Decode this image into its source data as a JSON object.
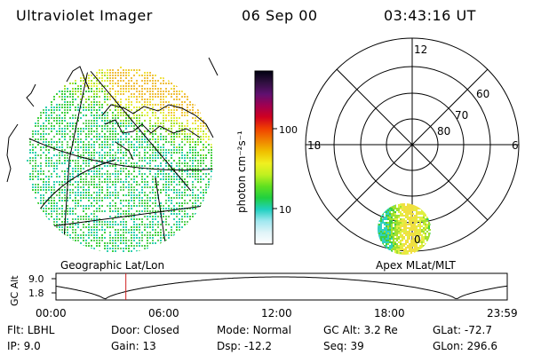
{
  "header": {
    "instrument": "Ultraviolet Imager",
    "date": "06 Sep 00",
    "time": "03:43:16 UT"
  },
  "panels": {
    "left_caption": "Geographic Lat/Lon",
    "right_caption": "Apex MLat/MLT"
  },
  "colorbar": {
    "unit_label": "photon cm⁻²s⁻¹",
    "ticks": [
      "100",
      "10"
    ],
    "colors": [
      "#000010",
      "#301040",
      "#601070",
      "#a00050",
      "#d00020",
      "#f04000",
      "#f08000",
      "#f0c000",
      "#f0f020",
      "#c0f020",
      "#60e020",
      "#20d040",
      "#20d0c0",
      "#a0e8f0",
      "#e0f4f8",
      "#ffffff"
    ]
  },
  "polar": {
    "lat_labels": [
      "60",
      "70",
      "80"
    ],
    "mlt_labels": [
      "12",
      "18",
      "6",
      "0"
    ]
  },
  "altitude_plot": {
    "ylabel": "GC Alt",
    "yticks": [
      "9.0",
      "1.8"
    ],
    "xticks": [
      "00:00",
      "06:00",
      "12:00",
      "18:00",
      "23:59"
    ],
    "marker_time": "03:43",
    "marker_color": "#d02020"
  },
  "footer": {
    "row1": [
      {
        "label": "Flt:",
        "value": "LBHL"
      },
      {
        "label": "Door:",
        "value": "Closed"
      },
      {
        "label": "Mode:",
        "value": "Normal"
      },
      {
        "label": "GC Alt:",
        "value": "3.2 Re"
      },
      {
        "label": "GLat:",
        "value": "-72.7"
      }
    ],
    "row2": [
      {
        "label": "IP:",
        "value": "9.0"
      },
      {
        "label": "Gain:",
        "value": "13"
      },
      {
        "label": "Dsp:",
        "value": "-12.2"
      },
      {
        "label": "Seq:",
        "value": "39"
      },
      {
        "label": "GLon:",
        "value": "296.6"
      }
    ]
  }
}
